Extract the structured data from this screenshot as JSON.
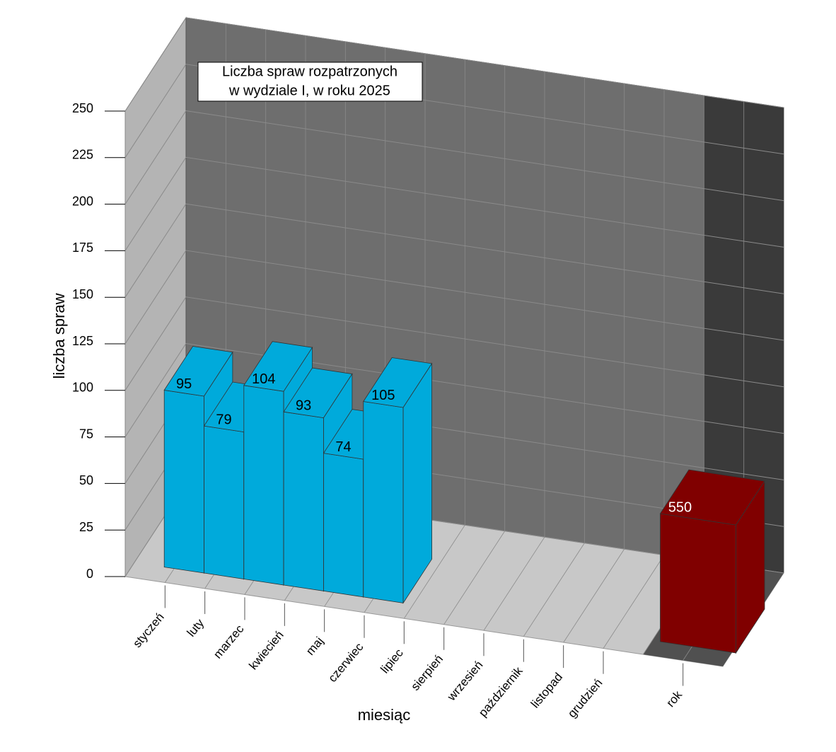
{
  "chart_data": {
    "type": "bar3d",
    "title": [
      "Liczba spraw rozpatrzonych",
      "w  wydziale I, w roku 2025"
    ],
    "y_label": "liczba spraw",
    "x_label": "miesiąc",
    "categories": [
      "styczeń",
      "luty",
      "marzec",
      "kwiecień",
      "maj",
      "czerwiec",
      "lipiec",
      "sierpień",
      "wrzesień",
      "październik",
      "listopad",
      "grudzień",
      "rok"
    ],
    "series": [
      {
        "color": "#00aadb",
        "values": [
          95,
          79,
          104,
          93,
          74,
          105,
          null,
          null,
          null,
          null,
          null,
          null,
          null
        ]
      },
      {
        "color": "#800000",
        "axis": "y2",
        "values": [
          null,
          null,
          null,
          null,
          null,
          null,
          null,
          null,
          null,
          null,
          null,
          null,
          550
        ]
      }
    ],
    "ylim": [
      0,
      250
    ],
    "yticks": [
      0,
      25,
      50,
      75,
      100,
      125,
      150,
      175,
      200,
      225,
      250
    ],
    "y2lim": [
      0,
      2000
    ],
    "grid": true
  }
}
